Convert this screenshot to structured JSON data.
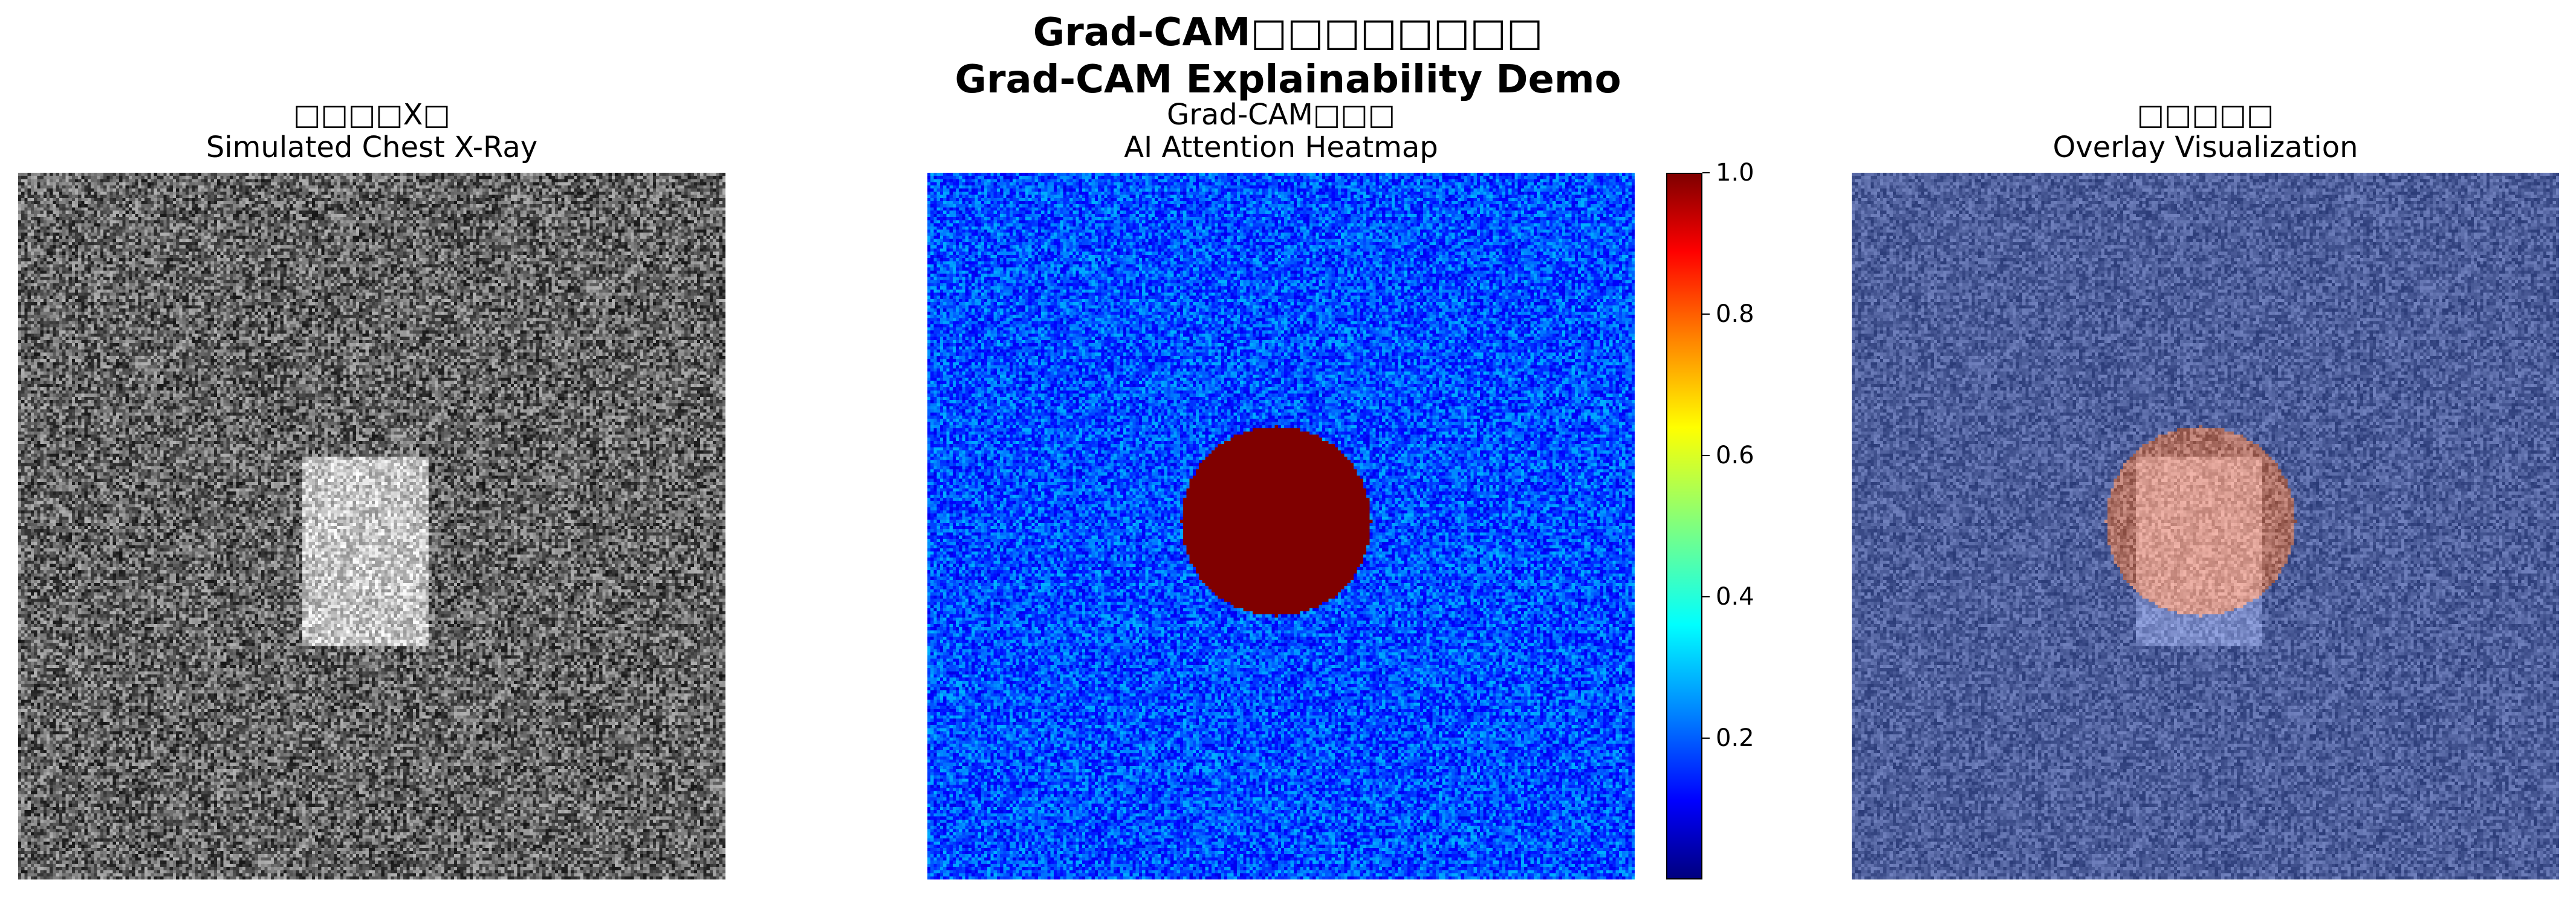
{
  "suptitle": {
    "line1": "Grad-CAM□□□□□□□□",
    "line2": "Grad-CAM Explainability Demo"
  },
  "panels": [
    {
      "title_zh": "□□□□X□",
      "title_en": "Simulated Chest X-Ray"
    },
    {
      "title_zh": "Grad-CAM□□□",
      "title_en": "AI Attention Heatmap"
    },
    {
      "title_zh": "□□□□□",
      "title_en": "Overlay Visualization"
    }
  ],
  "colorbar": {
    "colormap": "jet",
    "range": [
      0.0,
      1.0
    ],
    "ticks": [
      "0.2",
      "0.4",
      "0.6",
      "0.8",
      "1.0"
    ]
  },
  "chart_data": [
    {
      "type": "heatmap",
      "title": "Simulated Chest X-Ray",
      "colormap": "gray",
      "grid_size": [
        224,
        224
      ],
      "background": "random noise",
      "feature": {
        "shape": "rectangle",
        "rows": [
          90,
          150
        ],
        "cols": [
          90,
          130
        ],
        "brightness": "high"
      }
    },
    {
      "type": "heatmap",
      "title": "AI Attention Heatmap",
      "colormap": "jet",
      "grid_size": [
        224,
        224
      ],
      "vmin": 0.0,
      "vmax": 1.0,
      "background_range": [
        0.1,
        0.3
      ],
      "feature": {
        "shape": "circle",
        "center": [
          110,
          110
        ],
        "radius": 30,
        "value": 1.0
      }
    },
    {
      "type": "heatmap",
      "title": "Overlay Visualization",
      "description_of_layers": [
        "gray x-ray",
        "jet heatmap (alpha 0.5)"
      ]
    }
  ]
}
